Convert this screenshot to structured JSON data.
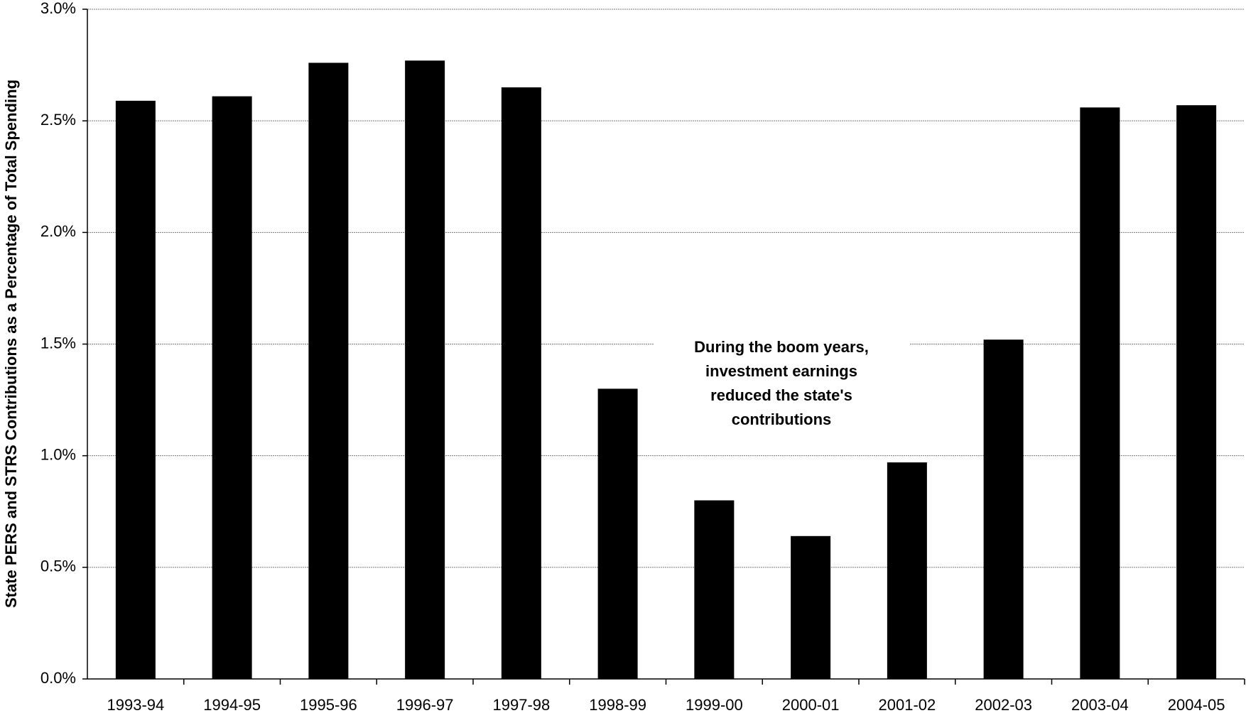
{
  "chart_data": {
    "type": "bar",
    "y_axis_label": "State PERS and STRS Contributions as a Percentage of Total Spending",
    "categories": [
      "1993-94",
      "1994-95",
      "1995-96",
      "1996-97",
      "1997-98",
      "1998-99",
      "1999-00",
      "2000-01",
      "2001-02",
      "2002-03",
      "2003-04",
      "2004-05"
    ],
    "values": [
      2.59,
      2.61,
      2.76,
      2.77,
      2.65,
      1.3,
      0.8,
      0.64,
      0.97,
      1.52,
      2.56,
      2.57
    ],
    "color": "#000000",
    "ylim": [
      0,
      3
    ],
    "yticks": [
      {
        "value": 0,
        "label": "0.0%"
      },
      {
        "value": 0.5,
        "label": "0.5%"
      },
      {
        "value": 1,
        "label": "1.0%"
      },
      {
        "value": 1.5,
        "label": "1.5%"
      },
      {
        "value": 2,
        "label": "2.0%"
      },
      {
        "value": 2.5,
        "label": "2.5%"
      },
      {
        "value": 3,
        "label": "3.0%"
      }
    ],
    "grid": true,
    "annotation": [
      "During the boom years,",
      "investment earnings",
      "reduced the state's",
      "contributions"
    ]
  }
}
